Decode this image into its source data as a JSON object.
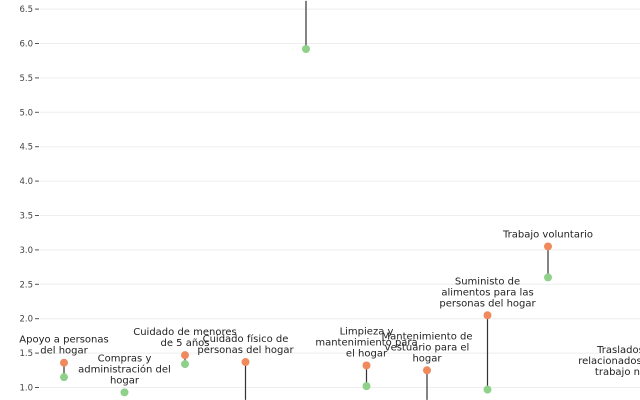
{
  "chart_data": {
    "type": "scatter",
    "subtype": "dumbbell",
    "title": "",
    "xlabel": "",
    "ylabel": "",
    "ylim": [
      0.82,
      6.62
    ],
    "yticks": [
      "1.0",
      "1.5",
      "2.0",
      "2.5",
      "3.0",
      "3.5",
      "4.0",
      "4.5",
      "5.0",
      "5.5",
      "6.0",
      "6.5"
    ],
    "grid": true,
    "legend": "none",
    "colors": {
      "orange": "#f08a5d",
      "green": "#8fd18a",
      "line": "#333333",
      "grid": "#eeeeee"
    },
    "categories": [
      {
        "label_lines": [
          "Apoyo a personas",
          "del hogar"
        ],
        "orange": 1.36,
        "green": 1.15
      },
      {
        "label_lines": [
          "Compras y",
          "administración del",
          "hogar"
        ],
        "orange": null,
        "green": 0.93
      },
      {
        "label_lines": [
          "Cuidado de menores",
          "de 5 años"
        ],
        "orange": 1.47,
        "green": 1.34
      },
      {
        "label_lines": [
          "Cuidado físico de",
          "personas del hogar"
        ],
        "orange": 1.37,
        "green": null
      },
      {
        "label_lines": [],
        "orange": null,
        "green": 5.92
      },
      {
        "label_lines": [
          "Limpieza y",
          "mantenimiento para",
          "el hogar"
        ],
        "orange": 1.32,
        "green": 1.02
      },
      {
        "label_lines": [
          "Mantenimiento de",
          "vestuario para el",
          "hogar"
        ],
        "orange": 1.25,
        "green": null
      },
      {
        "label_lines": [
          "Suministo de",
          "alimentos para las",
          "personas del hogar"
        ],
        "orange": 2.05,
        "green": 0.97
      },
      {
        "label_lines": [
          "Trabajo voluntario"
        ],
        "orange": 3.05,
        "green": 2.6
      },
      {
        "label_lines": [
          "Traslados",
          "relacionados con",
          "trabajo no"
        ],
        "orange": null,
        "green": null
      }
    ]
  }
}
